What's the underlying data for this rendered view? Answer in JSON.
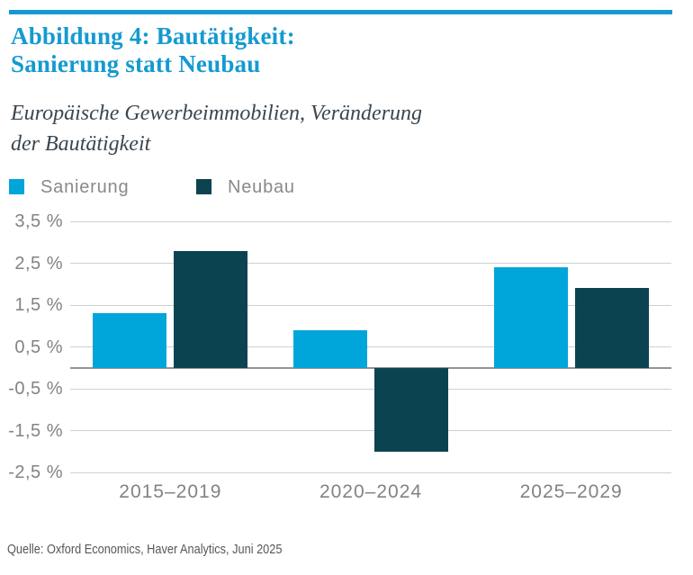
{
  "header": {
    "title": [
      "Abbildung 4: Bautätigkeit:",
      "Sanierung statt Neubau"
    ],
    "subtitle": [
      "Europäische Gewerbeimmobilien, Veränderung",
      "der Bautätigkeit"
    ]
  },
  "chart_data": {
    "type": "bar",
    "categories": [
      "2015–2019",
      "2020–2024",
      "2025–2029"
    ],
    "series": [
      {
        "name": "Sanierung",
        "color": "#00A6D9",
        "values": [
          1.3,
          0.9,
          2.4
        ]
      },
      {
        "name": "Neubau",
        "color": "#0B4450",
        "values": [
          2.8,
          -2.0,
          1.9
        ]
      }
    ],
    "ylim": [
      -2.5,
      3.5
    ],
    "yticks": [
      {
        "value": 3.5,
        "label": "3,5 %"
      },
      {
        "value": 2.5,
        "label": "2,5 %"
      },
      {
        "value": 1.5,
        "label": "1,5 %"
      },
      {
        "value": 0.5,
        "label": "0,5 %"
      },
      {
        "value": -0.5,
        "label": "-0,5 %"
      },
      {
        "value": -1.5,
        "label": "-1,5 %"
      },
      {
        "value": -2.5,
        "label": "-2,5 %"
      }
    ],
    "grid": true,
    "zero_line": true,
    "legend_position": "top",
    "title": "",
    "xlabel": "",
    "ylabel": ""
  },
  "footer": {
    "source": "Quelle: Oxford Economics, Haver Analytics, Juni 2025"
  },
  "colors": {
    "accent_cyan": "#149AD0",
    "bar_sanierung": "#00A6D9",
    "bar_neubau": "#0B4450",
    "subtitle_text": "#3A4650",
    "axis_text": "#808386",
    "legend_text": "#87898C",
    "gridline": "#CDD0D3",
    "zero_line": "#8F959B",
    "source_text": "#54575B",
    "background": "#FFFFFF"
  }
}
